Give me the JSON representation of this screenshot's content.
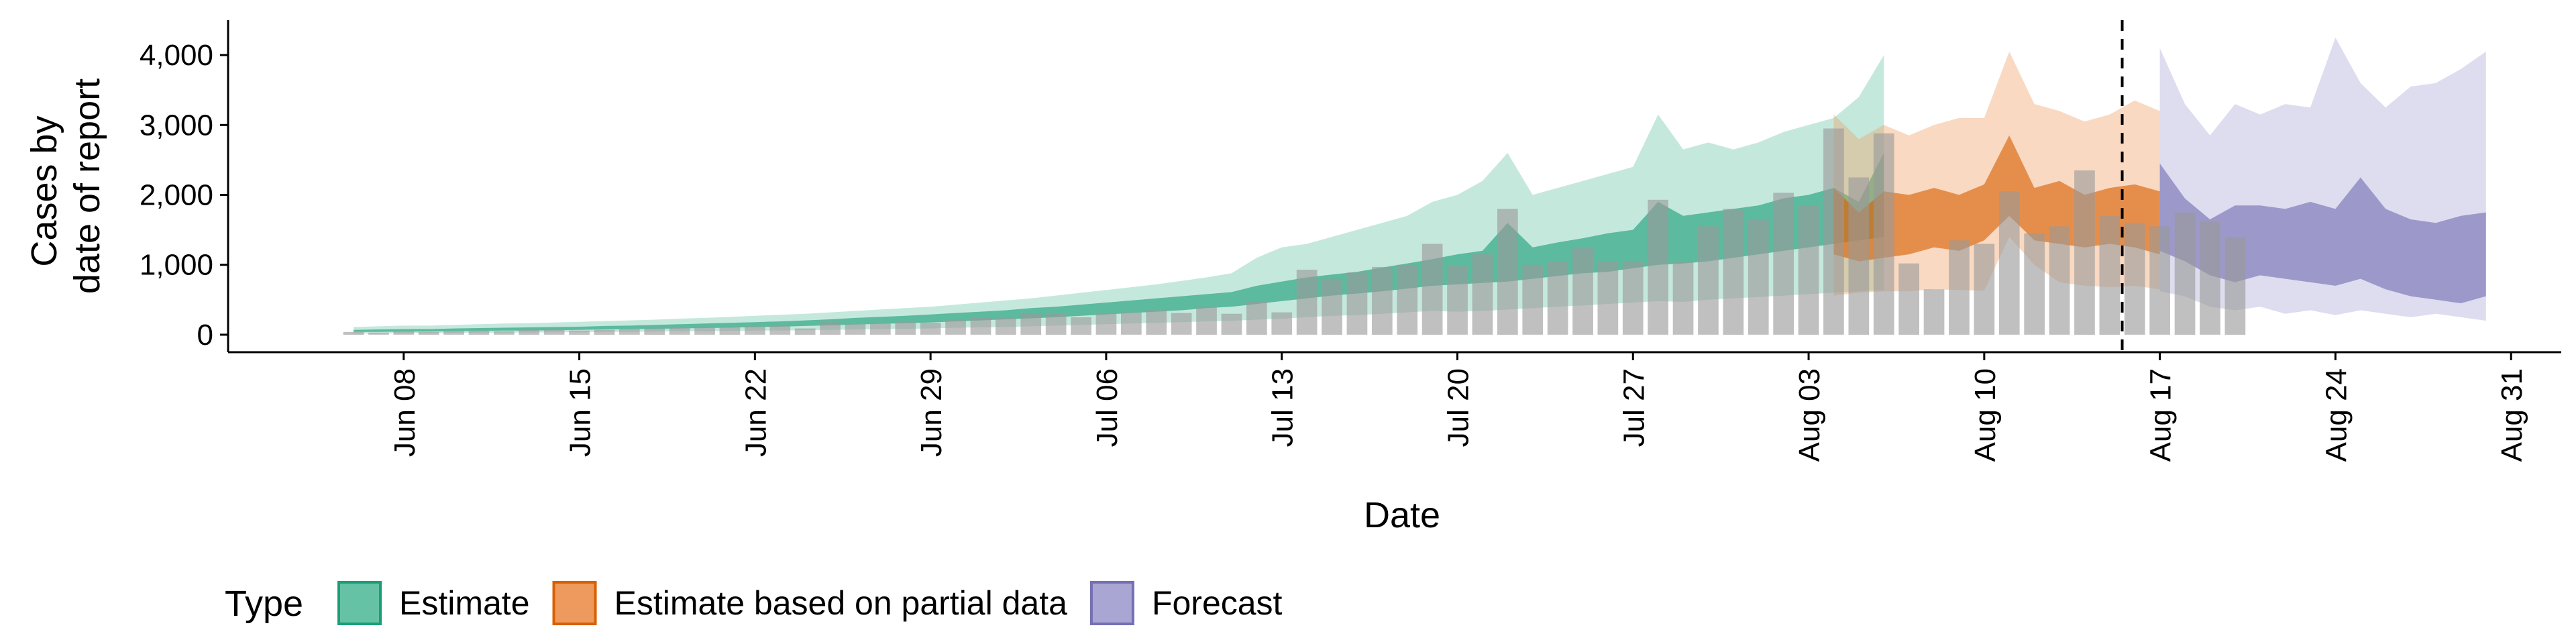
{
  "chart_data": {
    "type": "area",
    "xlabel": "Date",
    "ylabel_lines": [
      "Cases by",
      "date of report"
    ],
    "x_tick_labels": [
      "Jun 08",
      "Jun 15",
      "Jun 22",
      "Jun 29",
      "Jul 06",
      "Jul 13",
      "Jul 20",
      "Jul 27",
      "Aug 03",
      "Aug 10",
      "Aug 17",
      "Aug 24",
      "Aug 31"
    ],
    "x_tick_days": [
      0,
      7,
      14,
      21,
      28,
      35,
      42,
      49,
      56,
      63,
      70,
      77,
      84
    ],
    "y_ticks": [
      0,
      1000,
      2000,
      3000,
      4000
    ],
    "y_tick_labels": [
      "0",
      "1,000",
      "2,000",
      "3,000",
      "4,000"
    ],
    "xlim": [
      "Jun 01",
      "Sep 02"
    ],
    "ylim": [
      -250,
      4500
    ],
    "grid": false,
    "estimate_end": "Aug 16",
    "legend": {
      "position": "bottom-left",
      "title": "Type",
      "items": [
        {
          "label": "Estimate",
          "fill": "#66c2a5",
          "stroke": "#1b9e77"
        },
        {
          "label": "Estimate based on partial data",
          "fill": "#ee9a5e",
          "stroke": "#d95f02"
        },
        {
          "label": "Forecast",
          "fill": "#a9a6d4",
          "stroke": "#7570b3"
        }
      ]
    },
    "reported_cases": {
      "name": "Reported cases",
      "color": "#999999",
      "start_date": "Jun 06",
      "values": [
        40,
        30,
        50,
        40,
        50,
        60,
        50,
        70,
        80,
        60,
        70,
        80,
        90,
        100,
        100,
        110,
        120,
        130,
        90,
        180,
        150,
        170,
        180,
        170,
        220,
        240,
        250,
        300,
        300,
        250,
        310,
        320,
        350,
        310,
        400,
        300,
        470,
        320,
        930,
        800,
        890,
        970,
        1000,
        1300,
        980,
        1150,
        1800,
        1000,
        1050,
        1250,
        1050,
        1050,
        1930,
        1050,
        1550,
        1800,
        1650,
        2030,
        1850,
        2950,
        2250,
        2880,
        1020,
        650,
        1350,
        1300,
        2050,
        1450,
        1550,
        2350,
        1700,
        1600,
        1550,
        1750,
        1620,
        1390
      ]
    },
    "series": [
      {
        "name": "Estimate",
        "start_date": "Jun 06",
        "outer_color": "#66c2a5",
        "inner_color": "#1b9e77",
        "lower90": [
          15,
          15,
          20,
          20,
          25,
          25,
          30,
          30,
          35,
          35,
          40,
          40,
          45,
          50,
          50,
          55,
          60,
          60,
          65,
          70,
          75,
          80,
          85,
          90,
          100,
          105,
          110,
          120,
          130,
          140,
          150,
          160,
          170,
          180,
          190,
          200,
          215,
          230,
          250,
          270,
          280,
          300,
          320,
          340,
          330,
          340,
          360,
          380,
          400,
          420,
          440,
          460,
          480,
          470,
          500,
          520,
          540,
          560,
          580,
          600,
          620,
          640
        ],
        "lower50": [
          40,
          40,
          45,
          45,
          50,
          55,
          60,
          60,
          65,
          70,
          75,
          80,
          85,
          90,
          95,
          100,
          110,
          115,
          125,
          135,
          145,
          155,
          165,
          175,
          190,
          205,
          220,
          235,
          250,
          270,
          290,
          310,
          330,
          350,
          380,
          400,
          440,
          480,
          520,
          560,
          590,
          620,
          660,
          700,
          720,
          740,
          760,
          800,
          840,
          880,
          900,
          950,
          1000,
          1020,
          1050,
          1100,
          1150,
          1200,
          1250,
          1300,
          1350,
          1400
        ],
        "upper50": [
          70,
          75,
          80,
          80,
          90,
          95,
          100,
          105,
          110,
          115,
          125,
          130,
          140,
          150,
          160,
          170,
          180,
          190,
          205,
          220,
          240,
          255,
          270,
          290,
          310,
          330,
          350,
          380,
          400,
          430,
          460,
          490,
          520,
          550,
          580,
          610,
          700,
          760,
          820,
          860,
          900,
          960,
          1020,
          1080,
          1150,
          1200,
          1600,
          1250,
          1320,
          1380,
          1450,
          1500,
          1900,
          1700,
          1750,
          1800,
          1850,
          1950,
          2000,
          2100,
          1900,
          2600
        ],
        "upper90": [
          110,
          120,
          130,
          130,
          140,
          150,
          160,
          165,
          175,
          185,
          195,
          205,
          215,
          230,
          240,
          255,
          270,
          285,
          300,
          320,
          340,
          360,
          380,
          400,
          430,
          460,
          490,
          520,
          560,
          600,
          640,
          680,
          720,
          770,
          820,
          880,
          1100,
          1250,
          1300,
          1400,
          1500,
          1600,
          1700,
          1900,
          2000,
          2200,
          2600,
          2000,
          2100,
          2200,
          2300,
          2400,
          3150,
          2650,
          2750,
          2650,
          2750,
          2900,
          3000,
          3100,
          3400,
          4000
        ]
      },
      {
        "name": "Estimate based on partial data",
        "start_date": "Aug 04",
        "outer_color": "#ee9a5e",
        "inner_color": "#d95f02",
        "lower90": [
          560,
          600,
          620,
          620,
          650,
          640,
          630,
          1400,
          1000,
          750,
          700,
          680,
          700,
          650
        ],
        "lower50": [
          1150,
          1050,
          1100,
          1150,
          1250,
          1200,
          1350,
          1700,
          1350,
          1300,
          1250,
          1300,
          1250,
          1150
        ],
        "upper50": [
          2100,
          1750,
          2050,
          2000,
          2100,
          2000,
          2150,
          2850,
          2100,
          2200,
          2000,
          2100,
          2150,
          2050
        ],
        "upper90": [
          3150,
          2800,
          3000,
          2850,
          3000,
          3100,
          3100,
          4050,
          3300,
          3200,
          3050,
          3150,
          3350,
          3200
        ]
      },
      {
        "name": "Forecast",
        "start_date": "Aug 17",
        "outer_color": "#a9a6d4",
        "inner_color": "#7570b3",
        "lower90": [
          620,
          550,
          400,
          350,
          400,
          300,
          350,
          280,
          350,
          300,
          250,
          300,
          250,
          200
        ],
        "lower50": [
          1200,
          1050,
          850,
          750,
          850,
          800,
          750,
          700,
          800,
          650,
          550,
          500,
          450,
          550
        ],
        "upper50": [
          2450,
          1950,
          1650,
          1850,
          1850,
          1800,
          1900,
          1800,
          2250,
          1800,
          1650,
          1600,
          1700,
          1750
        ],
        "upper90": [
          4100,
          3300,
          2850,
          3300,
          3150,
          3300,
          3250,
          4250,
          3600,
          3250,
          3550,
          3600,
          3800,
          4050
        ]
      }
    ]
  }
}
